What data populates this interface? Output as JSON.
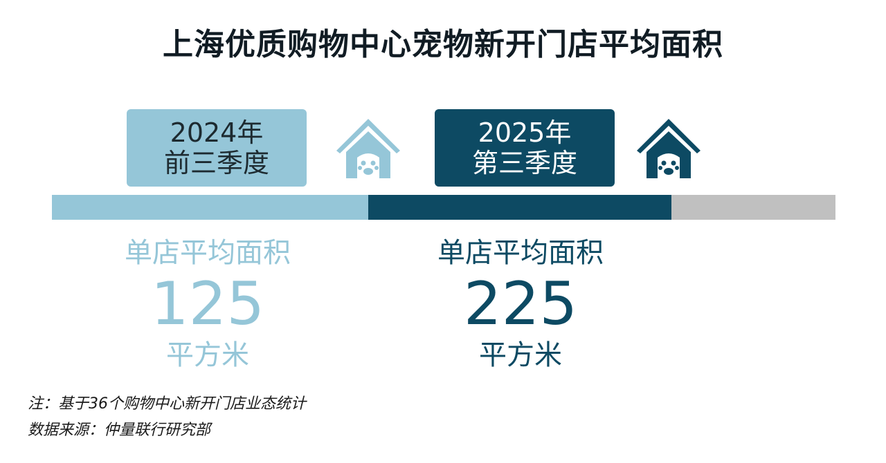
{
  "title": "上海优质购物中心宠物新开门店平均面积",
  "colors": {
    "period_2024": "#95c6d8",
    "period_2025": "#0d4a63",
    "remainder": "#c0c0c0"
  },
  "periods": [
    {
      "year": "2024年",
      "period": "前三季度",
      "metric_label": "单店平均面积",
      "value": "125",
      "unit": "平方米",
      "icon": "dog-house-paw-icon"
    },
    {
      "year": "2025年",
      "period": "第三季度",
      "metric_label": "单店平均面积",
      "value": "225",
      "unit": "平方米",
      "icon": "dog-house-paw-icon"
    }
  ],
  "notes": {
    "note": "注：基于36个购物中心新开门店业态统计",
    "source": "数据来源：仲量联行研究部"
  }
}
